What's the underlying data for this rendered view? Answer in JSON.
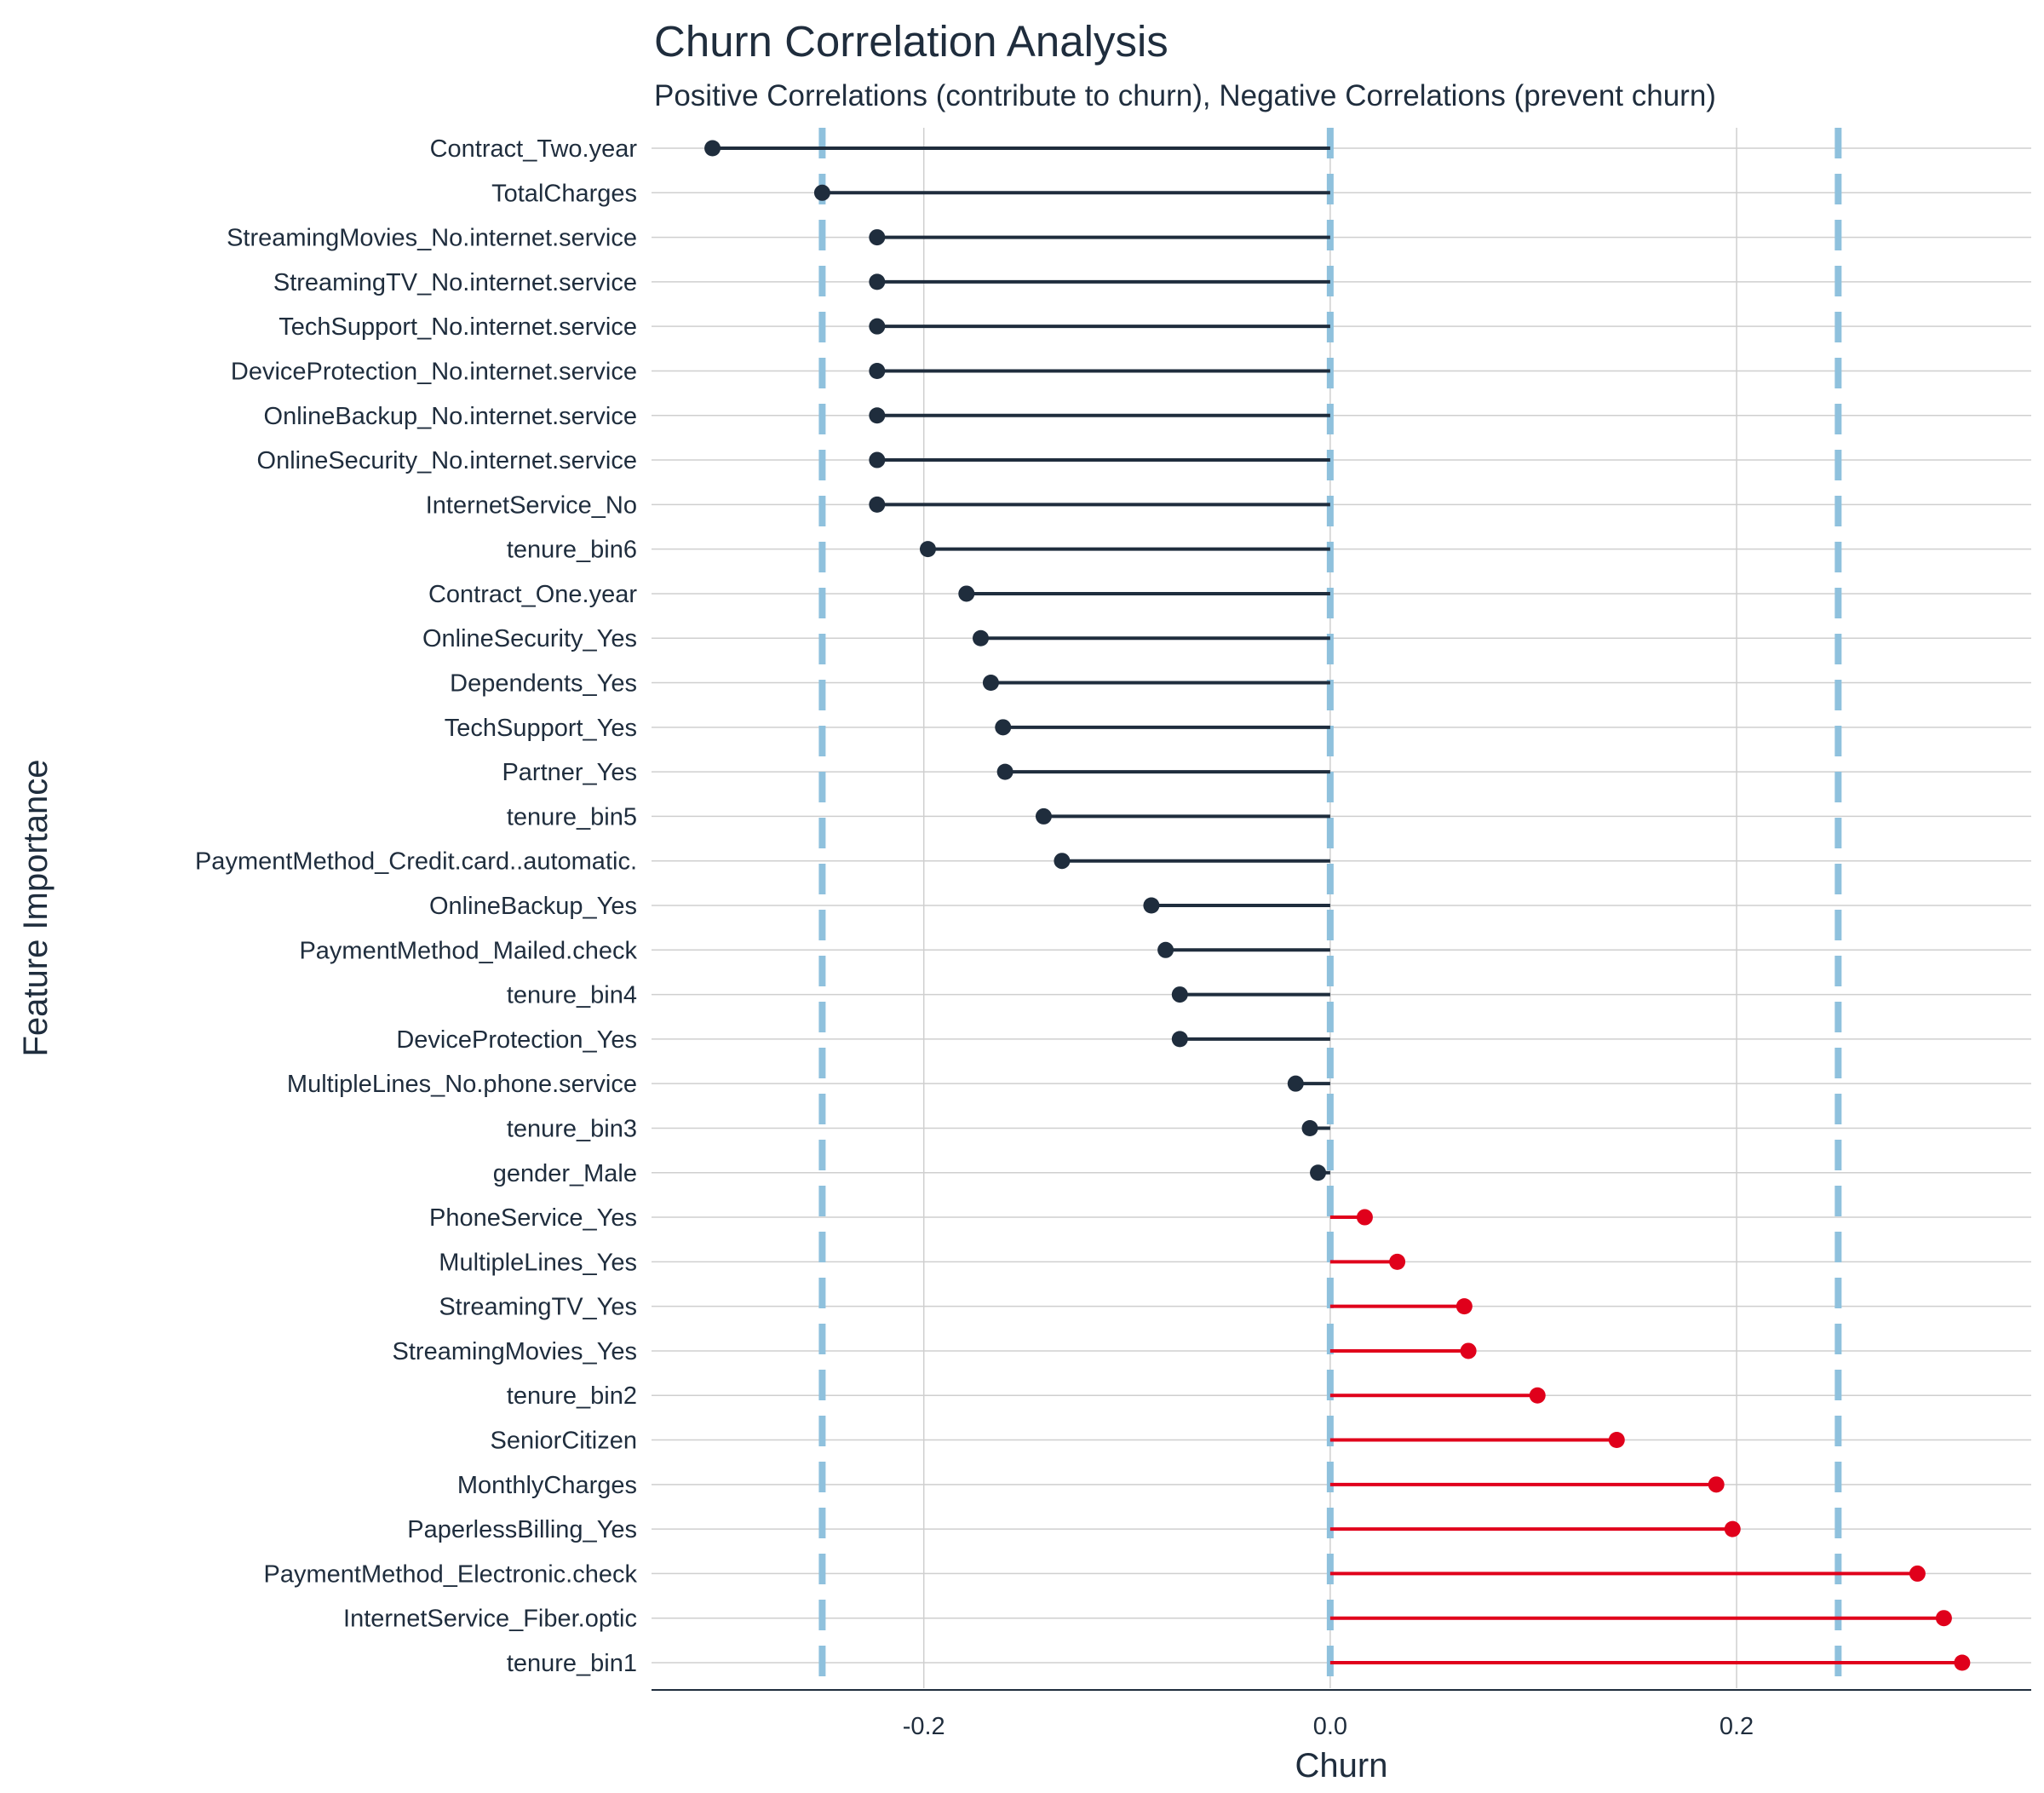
{
  "chart_data": {
    "type": "lollipop",
    "title": "Churn Correlation Analysis",
    "subtitle": "Positive Correlations (contribute to churn), Negative Correlations (prevent churn)",
    "xlabel": "Churn",
    "ylabel": "Feature Importance",
    "xlim": [
      -0.334,
      0.345
    ],
    "x_ticks": [
      -0.2,
      0.0,
      0.2
    ],
    "x_tick_labels": [
      "-0.2",
      "0.0",
      "0.2"
    ],
    "reference_lines": [
      -0.25,
      0.0,
      0.25
    ],
    "grid": true,
    "colors": {
      "negative": "#1f2d3d",
      "positive": "#e0001b",
      "reference": "#8fc1dd",
      "text": "#1f2d3d"
    },
    "categories": [
      "Contract_Two.year",
      "TotalCharges",
      "StreamingMovies_No.internet.service",
      "StreamingTV_No.internet.service",
      "TechSupport_No.internet.service",
      "DeviceProtection_No.internet.service",
      "OnlineBackup_No.internet.service",
      "OnlineSecurity_No.internet.service",
      "InternetService_No",
      "tenure_bin6",
      "Contract_One.year",
      "OnlineSecurity_Yes",
      "Dependents_Yes",
      "TechSupport_Yes",
      "Partner_Yes",
      "tenure_bin5",
      "PaymentMethod_Credit.card..automatic.",
      "OnlineBackup_Yes",
      "PaymentMethod_Mailed.check",
      "tenure_bin4",
      "DeviceProtection_Yes",
      "MultipleLines_No.phone.service",
      "tenure_bin3",
      "gender_Male",
      "PhoneService_Yes",
      "MultipleLines_Yes",
      "StreamingTV_Yes",
      "StreamingMovies_Yes",
      "tenure_bin2",
      "SeniorCitizen",
      "MonthlyCharges",
      "PaperlessBilling_Yes",
      "PaymentMethod_Electronic.check",
      "InternetService_Fiber.optic",
      "tenure_bin1"
    ],
    "values": [
      -0.304,
      -0.25,
      -0.223,
      -0.223,
      -0.223,
      -0.223,
      -0.223,
      -0.223,
      -0.223,
      -0.198,
      -0.179,
      -0.172,
      -0.167,
      -0.161,
      -0.16,
      -0.141,
      -0.132,
      -0.088,
      -0.081,
      -0.074,
      -0.074,
      -0.017,
      -0.01,
      -0.006,
      0.017,
      0.033,
      0.066,
      0.068,
      0.102,
      0.141,
      0.19,
      0.198,
      0.289,
      0.302,
      0.311
    ]
  }
}
